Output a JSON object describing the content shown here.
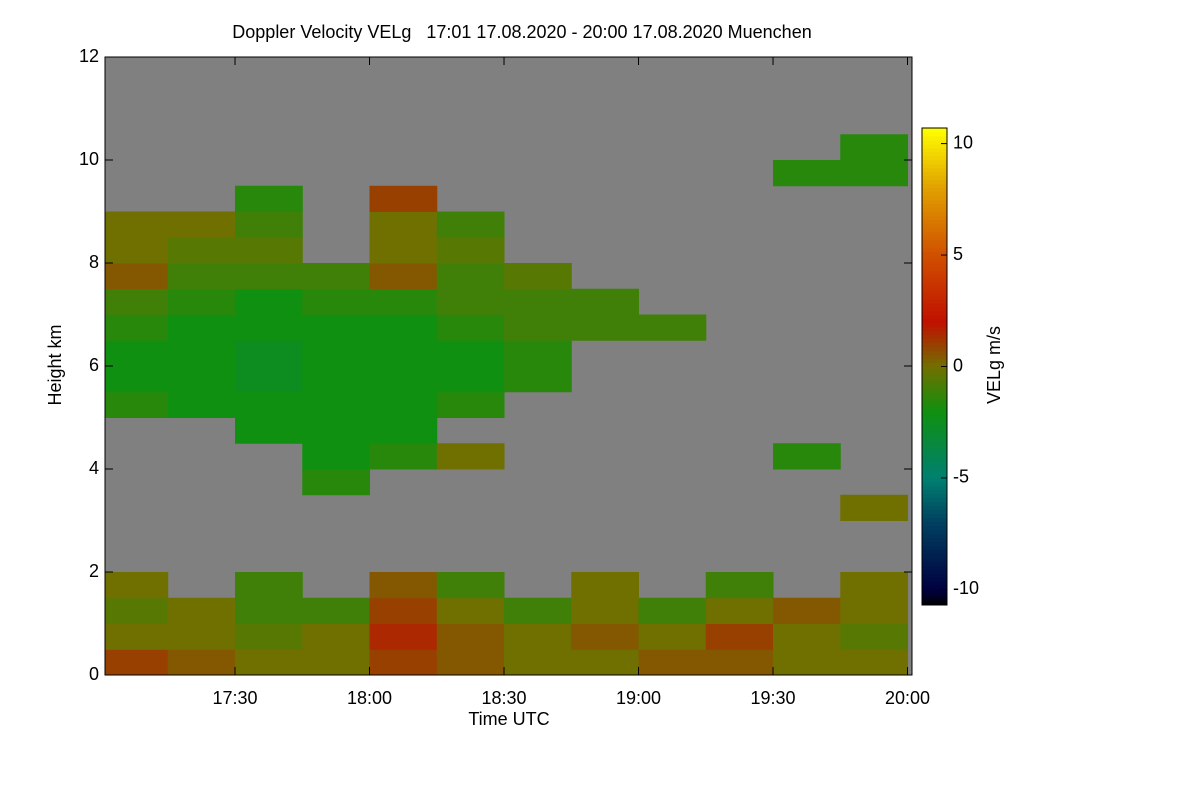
{
  "chart_data": {
    "type": "heatmap",
    "title": "Doppler Velocity VELg   17:01 17.08.2020 - 20:00 17.08.2020 Muenchen",
    "xlabel": "Time UTC",
    "ylabel": "Height km",
    "colorbar_label": "VELg m/s",
    "xlim": [
      1021,
      1201
    ],
    "ylim": [
      0,
      12
    ],
    "xticks": [
      {
        "value": 1050,
        "label": "17:30"
      },
      {
        "value": 1080,
        "label": "18:00"
      },
      {
        "value": 1110,
        "label": "18:30"
      },
      {
        "value": 1140,
        "label": "19:00"
      },
      {
        "value": 1170,
        "label": "19:30"
      },
      {
        "value": 1200,
        "label": "20:00"
      }
    ],
    "yticks": [
      0,
      2,
      4,
      6,
      8,
      10,
      12
    ],
    "clim": [
      -10.7,
      10.7
    ],
    "cticks": [
      -10,
      -5,
      0,
      5,
      10
    ],
    "missing_color": "#808080",
    "colorscale": [
      [
        -10.7,
        "#000000"
      ],
      [
        -10,
        "#000040"
      ],
      [
        -7,
        "#004060"
      ],
      [
        -5,
        "#008070"
      ],
      [
        -2,
        "#109010"
      ],
      [
        0,
        "#707000"
      ],
      [
        2,
        "#c01000"
      ],
      [
        5,
        "#d05000"
      ],
      [
        8,
        "#e0a000"
      ],
      [
        10.7,
        "#ffff00"
      ]
    ],
    "xbins": [
      1020,
      1035,
      1050,
      1065,
      1080,
      1095,
      1110,
      1125,
      1140,
      1155,
      1170,
      1185,
      1200
    ],
    "ybins": [
      0,
      0.5,
      1,
      1.5,
      2,
      2.5,
      3,
      3.5,
      4,
      4.5,
      5,
      5.5,
      6,
      6.5,
      7,
      7.5,
      8,
      8.5,
      9,
      9.5,
      10,
      10.5,
      11,
      11.5,
      12
    ],
    "z": [
      [
        1,
        0.5,
        0,
        0,
        1,
        0.5,
        0,
        0,
        0.5,
        0.5,
        0,
        0
      ],
      [
        0,
        0,
        -0.5,
        0,
        1.5,
        0.5,
        0,
        0.5,
        0,
        1,
        0,
        -0.5
      ],
      [
        -0.5,
        0,
        -1,
        -1,
        1,
        0,
        -1,
        0,
        -1,
        0,
        0.5,
        0
      ],
      [
        0,
        null,
        -1,
        null,
        0.5,
        -1,
        null,
        0,
        null,
        -1,
        null,
        0
      ],
      [
        null,
        null,
        null,
        null,
        null,
        null,
        null,
        null,
        null,
        null,
        null,
        null
      ],
      [
        null,
        null,
        null,
        null,
        null,
        null,
        null,
        null,
        null,
        null,
        null,
        null
      ],
      [
        null,
        null,
        null,
        null,
        null,
        null,
        null,
        null,
        null,
        null,
        null,
        0
      ],
      [
        null,
        null,
        null,
        -1.5,
        null,
        null,
        null,
        null,
        null,
        null,
        null,
        null
      ],
      [
        null,
        null,
        null,
        -2,
        -1.5,
        0,
        null,
        null,
        null,
        null,
        -1.5,
        null
      ],
      [
        null,
        null,
        -2,
        -2,
        -2,
        null,
        null,
        null,
        null,
        null,
        null,
        null
      ],
      [
        -1.5,
        -2,
        -2,
        -2,
        -2,
        -1.5,
        null,
        null,
        null,
        null,
        null,
        null
      ],
      [
        -2,
        -2,
        -2.5,
        -2,
        -2,
        -2,
        -1.5,
        null,
        null,
        null,
        null,
        null
      ],
      [
        -2,
        -2,
        -2.5,
        -2,
        -2,
        -2,
        -1.5,
        null,
        null,
        null,
        null,
        null
      ],
      [
        -1.5,
        -2,
        -2,
        -2,
        -2,
        -1.5,
        -1,
        -1,
        -1,
        null,
        null,
        null
      ],
      [
        -1,
        -1.5,
        -2,
        -1.5,
        -1.5,
        -1,
        -1,
        -1,
        null,
        null,
        null,
        null
      ],
      [
        0.5,
        -1,
        -1,
        -1,
        0.5,
        -1,
        -0.5,
        null,
        null,
        null,
        null,
        null
      ],
      [
        0,
        -0.5,
        -0.5,
        null,
        0,
        -0.5,
        null,
        null,
        null,
        null,
        null,
        null
      ],
      [
        0,
        0,
        -1,
        null,
        0,
        -1,
        null,
        null,
        null,
        null,
        null,
        null
      ],
      [
        null,
        null,
        -1.5,
        null,
        1,
        null,
        null,
        null,
        null,
        null,
        null,
        null
      ],
      [
        null,
        null,
        null,
        null,
        null,
        null,
        null,
        null,
        null,
        null,
        -1.5,
        -1.5
      ],
      [
        null,
        null,
        null,
        null,
        null,
        null,
        null,
        null,
        null,
        null,
        null,
        -1.5
      ],
      [
        null,
        null,
        null,
        null,
        null,
        null,
        null,
        null,
        null,
        null,
        null,
        null
      ],
      [
        null,
        null,
        null,
        null,
        null,
        null,
        null,
        null,
        null,
        null,
        null,
        null
      ],
      [
        null,
        null,
        null,
        null,
        null,
        null,
        null,
        null,
        null,
        null,
        null,
        null
      ]
    ]
  }
}
